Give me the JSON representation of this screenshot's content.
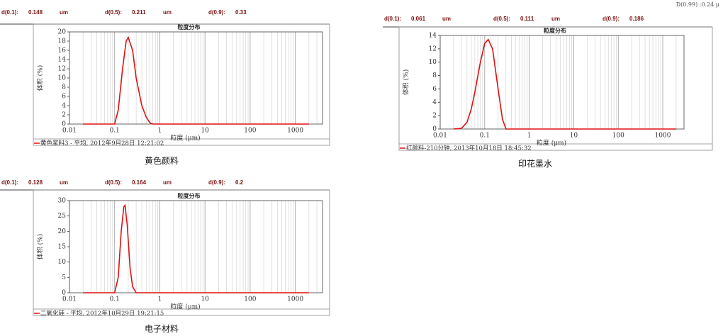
{
  "chart_data": [
    {
      "type": "line",
      "title": "粒度分布",
      "xlabel": "粒度 (μm)",
      "ylabel": "体积 (%)",
      "log_x": true,
      "grid": true,
      "stats": [
        {
          "label": "d(0.1):",
          "value": 0.148,
          "unit": "um"
        },
        {
          "label": "d(0.5):",
          "value": 0.211,
          "unit": "um"
        },
        {
          "label": "d(0.9):",
          "value": 0.33
        }
      ],
      "x": [
        0.02,
        0.1,
        0.12,
        0.15,
        0.18,
        0.2,
        0.25,
        0.3,
        0.4,
        0.5,
        0.6,
        0.7,
        2000
      ],
      "series": [
        {
          "name": "黄色浆料3 - 平均, 2012年9月28日 12:21:02",
          "color": "#e01010",
          "values": [
            0,
            0,
            3,
            12,
            18,
            18.8,
            16,
            10,
            4,
            1.5,
            0.3,
            0,
            0
          ]
        }
      ],
      "xlim": [
        0.01,
        4000
      ],
      "xticks": [
        0.01,
        0.1,
        1,
        10,
        100,
        1000
      ],
      "ylim": [
        0,
        20
      ],
      "yticks": [
        0,
        2,
        4,
        6,
        8,
        10,
        12,
        14,
        16,
        18,
        20
      ],
      "caption": "黄色颜料"
    },
    {
      "type": "line",
      "title": "粒度分布",
      "xlabel": "粒度 (μm)",
      "ylabel": "体积 (%)",
      "log_x": true,
      "grid": true,
      "note": "D(0.99) :0.24 μ",
      "stats": [
        {
          "label": "d(0.1):",
          "value": 0.061,
          "unit": "um"
        },
        {
          "label": "d(0.5):",
          "value": 0.111,
          "unit": "um"
        },
        {
          "label": "d(0.9):",
          "value": 0.186
        }
      ],
      "x": [
        0.02,
        0.03,
        0.04,
        0.05,
        0.06,
        0.08,
        0.1,
        0.12,
        0.15,
        0.2,
        0.25,
        0.3,
        2000
      ],
      "series": [
        {
          "name": "红颜料-210分钟, 2013年10月18日 18:45:32",
          "color": "#e01010",
          "values": [
            0,
            0.1,
            1,
            3,
            5.5,
            10,
            12.8,
            13.4,
            12,
            6,
            1.5,
            0,
            0
          ]
        }
      ],
      "xlim": [
        0.01,
        3000
      ],
      "xticks": [
        0.01,
        0.1,
        1,
        10,
        100,
        1000
      ],
      "ylim": [
        0,
        14
      ],
      "yticks": [
        0,
        2,
        4,
        6,
        8,
        10,
        12,
        14
      ],
      "caption": "印花墨水"
    },
    {
      "type": "line",
      "title": "粒度分布",
      "xlabel": "粒度 (μm)",
      "ylabel": "体积 (%)",
      "log_x": true,
      "grid": true,
      "stats": [
        {
          "label": "d(0.1):",
          "value": 0.128,
          "unit": "um"
        },
        {
          "label": "d(0.5):",
          "value": 0.164,
          "unit": "um"
        },
        {
          "label": "d(0.9):",
          "value": 0.2
        }
      ],
      "x": [
        0.02,
        0.1,
        0.12,
        0.14,
        0.16,
        0.17,
        0.19,
        0.22,
        0.25,
        0.3,
        2000
      ],
      "series": [
        {
          "name": "二氧化硅 - 平均, 2012年10月29日 19:21:15",
          "color": "#e01010",
          "values": [
            0,
            0,
            5,
            20,
            28,
            28.5,
            22,
            8,
            2,
            0,
            0
          ]
        }
      ],
      "xlim": [
        0.01,
        4000
      ],
      "xticks": [
        0.01,
        0.1,
        1,
        10,
        100,
        1000
      ],
      "ylim": [
        0,
        30
      ],
      "yticks": [
        0,
        5,
        10,
        15,
        20,
        25,
        30
      ],
      "caption": "电子材料"
    }
  ]
}
